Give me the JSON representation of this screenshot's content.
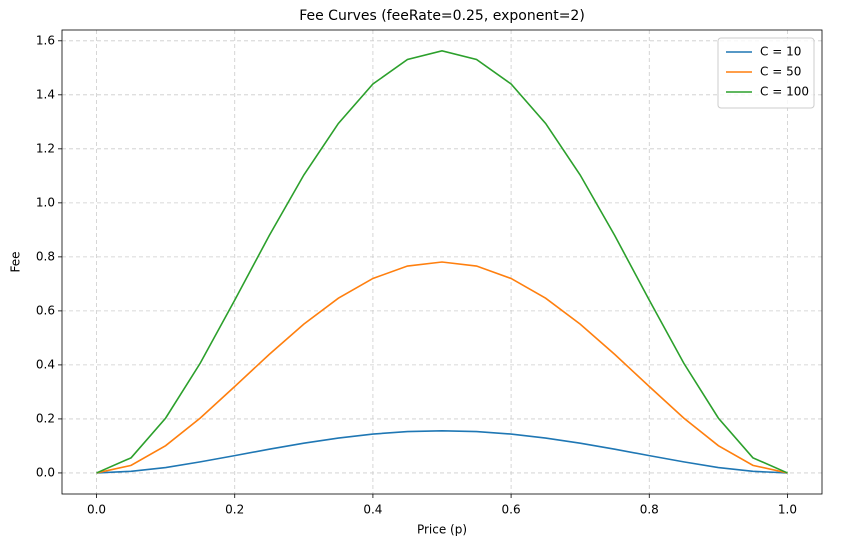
{
  "chart_data": {
    "type": "line",
    "title": "Fee Curves (feeRate=0.25, exponent=2)",
    "xlabel": "Price (p)",
    "ylabel": "Fee",
    "x": [
      0,
      0.05,
      0.1,
      0.15,
      0.2,
      0.25,
      0.3,
      0.35,
      0.4,
      0.45,
      0.5,
      0.55,
      0.6,
      0.65,
      0.7,
      0.75,
      0.8,
      0.85,
      0.9,
      0.95,
      1
    ],
    "series": [
      {
        "name": "C = 10",
        "color": "#1f77b4",
        "values": [
          0,
          0.006,
          0.02,
          0.041,
          0.064,
          0.088,
          0.11,
          0.129,
          0.144,
          0.153,
          0.156,
          0.153,
          0.144,
          0.129,
          0.11,
          0.088,
          0.064,
          0.041,
          0.02,
          0.006,
          0
        ]
      },
      {
        "name": "C = 50",
        "color": "#ff7f0e",
        "values": [
          0,
          0.028,
          0.101,
          0.203,
          0.32,
          0.439,
          0.551,
          0.647,
          0.72,
          0.766,
          0.781,
          0.766,
          0.72,
          0.647,
          0.551,
          0.439,
          0.32,
          0.203,
          0.101,
          0.028,
          0
        ]
      },
      {
        "name": "C = 100",
        "color": "#2ca02c",
        "values": [
          0,
          0.056,
          0.203,
          0.406,
          0.64,
          0.879,
          1.103,
          1.294,
          1.44,
          1.531,
          1.563,
          1.531,
          1.44,
          1.294,
          1.103,
          0.879,
          0.64,
          0.406,
          0.203,
          0.056,
          0
        ]
      }
    ],
    "xlim": [
      -0.05,
      1.05
    ],
    "xticks": [
      {
        "value": 0,
        "label": "0.0"
      },
      0.2,
      0.4,
      0.6,
      0.8,
      {
        "value": 1,
        "label": "1.0"
      }
    ],
    "ylim": [
      -0.078,
      1.64
    ],
    "yticks": [
      {
        "value": 0,
        "label": "0.0"
      },
      0.2,
      0.4,
      0.6,
      0.8,
      {
        "value": 1,
        "label": "1.0"
      },
      1.2,
      1.4,
      1.6
    ],
    "grid": true,
    "legend": "upper right"
  }
}
